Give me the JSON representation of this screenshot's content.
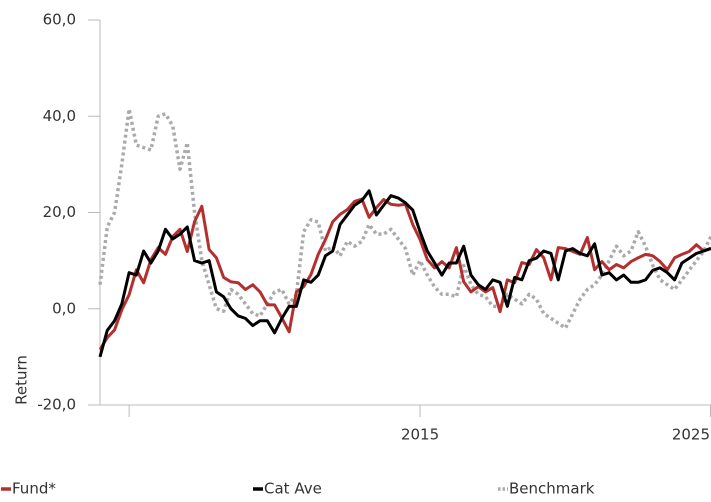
{
  "chart_data": {
    "type": "line",
    "y_label": "Return",
    "xlim": [
      2004,
      2025
    ],
    "xticks": [
      {
        "value": 2005,
        "label": null
      },
      2015,
      2025
    ],
    "ylim": [
      -20,
      60
    ],
    "yticks": [
      {
        "value": -20,
        "label": "-20,0"
      },
      {
        "value": 0,
        "label": "0,0"
      },
      {
        "value": 20,
        "label": "20,0"
      },
      {
        "value": 40,
        "label": "40,0"
      },
      {
        "value": 60,
        "label": "60,0"
      }
    ],
    "legend": "bottom",
    "x": [
      2004,
      2004.25,
      2004.5,
      2004.75,
      2005,
      2005.25,
      2005.5,
      2005.75,
      2006,
      2006.25,
      2006.5,
      2006.75,
      2007,
      2007.25,
      2007.5,
      2007.75,
      2008,
      2008.25,
      2008.5,
      2008.75,
      2009,
      2009.25,
      2009.5,
      2009.75,
      2010,
      2010.25,
      2010.5,
      2010.75,
      2011,
      2011.25,
      2011.5,
      2011.75,
      2012,
      2012.25,
      2012.5,
      2012.75,
      2013,
      2013.25,
      2013.5,
      2013.75,
      2014,
      2014.25,
      2014.5,
      2014.75,
      2015,
      2015.25,
      2015.5,
      2015.75,
      2016,
      2016.25,
      2016.5,
      2016.75,
      2017,
      2017.25,
      2017.5,
      2017.75,
      2018,
      2018.25,
      2018.5,
      2018.75,
      2019,
      2019.25,
      2019.5,
      2019.75,
      2020,
      2020.25,
      2020.5,
      2020.75,
      2021,
      2021.25,
      2021.5,
      2021.75,
      2022,
      2022.25,
      2022.5,
      2022.75,
      2023,
      2023.25,
      2023.5,
      2023.75,
      2024,
      2024.25,
      2024.5,
      2024.75,
      2025
    ],
    "series": [
      {
        "name": "Fund*",
        "color": "#b3302f",
        "style": "solid",
        "values": [
          -8.5,
          -6.0,
          -4.4,
          -0.2,
          2.9,
          8.1,
          5.4,
          10.2,
          12.7,
          11.3,
          15.0,
          16.5,
          11.9,
          18.1,
          21.3,
          12.3,
          10.6,
          6.5,
          5.6,
          5.4,
          4.0,
          5.0,
          3.5,
          0.8,
          0.8,
          -1.9,
          -4.8,
          3.5,
          4.6,
          7.1,
          11.3,
          14.4,
          18.1,
          19.6,
          20.6,
          22.3,
          22.8,
          19.0,
          21.0,
          22.7,
          21.7,
          21.5,
          21.7,
          17.5,
          14.4,
          10.2,
          8.5,
          9.8,
          8.5,
          12.7,
          5.6,
          3.5,
          4.6,
          3.5,
          4.4,
          -0.6,
          6.0,
          5.4,
          9.6,
          9.2,
          12.3,
          10.6,
          6.0,
          12.7,
          12.5,
          11.9,
          11.3,
          14.8,
          8.1,
          9.8,
          8.1,
          9.2,
          8.5,
          9.8,
          10.6,
          11.3,
          11.0,
          9.8,
          8.1,
          10.6,
          11.3,
          11.9,
          13.3,
          12.0,
          12.6
        ]
      },
      {
        "name": "Cat Ave",
        "color": "#000000",
        "style": "solid",
        "values": [
          -10,
          -4.5,
          -2.5,
          1,
          7.5,
          7,
          12,
          9.5,
          12,
          16.5,
          14.5,
          15.5,
          17,
          10,
          9.5,
          10,
          3.5,
          2.5,
          0,
          -1.5,
          -2,
          -3.5,
          -2.5,
          -2.5,
          -5,
          -2,
          0.5,
          0.5,
          6,
          5.5,
          7,
          11,
          12,
          17.5,
          19.5,
          21.5,
          22.5,
          24.5,
          19.5,
          21.5,
          23.5,
          23,
          22,
          20.5,
          16,
          12,
          9.5,
          7,
          9.5,
          9.5,
          13,
          7,
          5,
          4,
          6,
          5.5,
          0.5,
          6.5,
          6,
          10,
          10.5,
          12,
          11.5,
          6,
          12,
          12.5,
          11.5,
          11,
          13.5,
          7,
          7.5,
          6,
          7,
          5.5,
          5.5,
          6,
          8,
          8.5,
          7.5,
          6,
          9.5,
          10.5,
          11.5,
          12,
          12.5
        ]
      },
      {
        "name": "Benchmark",
        "color": "#aaaaaa",
        "style": "dotted",
        "values": [
          5,
          17,
          20,
          30,
          41.5,
          34,
          33.5,
          33,
          40,
          40.5,
          38,
          29,
          34.5,
          20,
          10,
          5,
          0,
          -0.5,
          4,
          3,
          1,
          -1,
          -1.5,
          1,
          3.5,
          4,
          1,
          3,
          16,
          18.5,
          18,
          12,
          13,
          11,
          14,
          13,
          14,
          17.5,
          15.5,
          15.5,
          16.5,
          14.5,
          12.5,
          7,
          10,
          7,
          4.5,
          3,
          3,
          2.5,
          9,
          5,
          3,
          2.5,
          0.5,
          0.5,
          3,
          2,
          1,
          3,
          2,
          -1,
          -2,
          -3,
          -4,
          -1,
          2,
          4,
          5,
          7,
          10,
          13,
          11,
          12,
          16,
          13,
          9,
          6,
          5,
          4,
          6,
          8,
          10,
          12,
          15
        ]
      }
    ]
  }
}
